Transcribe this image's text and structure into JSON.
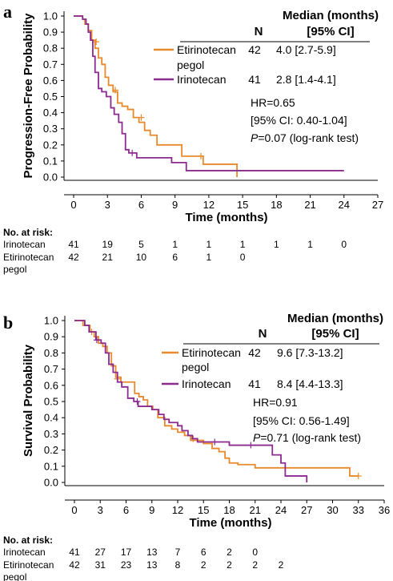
{
  "colors": {
    "etirinotecan": "#e8892b",
    "irinotecan": "#8b2a8f"
  },
  "chart_data": [
    {
      "panel": "a",
      "type": "line",
      "step": true,
      "xlabel": "Time (months)",
      "ylabel": "Progression-Free Probability",
      "xlim": [
        0,
        27
      ],
      "ylim": [
        0,
        1
      ],
      "xticks": [
        "0",
        "3",
        "6",
        "9",
        "12",
        "15",
        "18",
        "21",
        "24",
        "27"
      ],
      "yticks": [
        "0.0",
        "0.1",
        "0.2",
        "0.3",
        "0.4",
        "0.5",
        "0.6",
        "0.7",
        "0.8",
        "0.9",
        "1.0"
      ],
      "legend": {
        "header": "Median (months)",
        "n_header": "N",
        "ci_header": "[95% CI]",
        "rows": [
          {
            "name_line1": "Etirinotecan",
            "name_line2": "pegol",
            "n": "42",
            "median": "4.0 [2.7-5.9]"
          },
          {
            "name_line1": "Irinotecan",
            "name_line2": "",
            "n": "41",
            "median": "2.8 [1.4-4.1]"
          }
        ]
      },
      "stats": {
        "hr": "HR=0.65",
        "ci": "[95% CI: 0.40-1.04]",
        "p_label": "P",
        "p_rest": "=0.07 (log-rank test)"
      },
      "series": [
        {
          "name": "Etirinotecan pegol",
          "color": "#e8892b",
          "x": [
            0,
            0.8,
            1.0,
            1.3,
            1.6,
            1.9,
            2.2,
            2.5,
            2.8,
            3.1,
            3.5,
            3.9,
            4.3,
            4.8,
            5.3,
            5.8,
            6.3,
            6.8,
            7.4,
            8.1,
            9.6,
            10.5,
            11.5,
            12.3,
            14.3,
            14.5
          ],
          "y": [
            1.0,
            0.98,
            0.95,
            0.91,
            0.85,
            0.8,
            0.74,
            0.7,
            0.62,
            0.57,
            0.53,
            0.46,
            0.44,
            0.42,
            0.37,
            0.34,
            0.29,
            0.26,
            0.2,
            0.2,
            0.13,
            0.13,
            0.08,
            0.08,
            0.08,
            0.0
          ],
          "censored": [
            [
              2.0,
              0.84
            ],
            [
              3.7,
              0.54
            ],
            [
              6.0,
              0.37
            ],
            [
              11.3,
              0.13
            ]
          ]
        },
        {
          "name": "Irinotecan",
          "color": "#8b2a8f",
          "x": [
            0,
            0.8,
            1.1,
            1.3,
            1.5,
            1.7,
            1.9,
            2.2,
            2.5,
            2.9,
            3.3,
            3.6,
            4.0,
            4.3,
            4.6,
            4.9,
            5.2,
            5.6,
            6.3,
            8.7,
            10.0,
            24.0
          ],
          "y": [
            1.0,
            0.98,
            0.95,
            0.9,
            0.85,
            0.75,
            0.65,
            0.55,
            0.53,
            0.5,
            0.43,
            0.39,
            0.34,
            0.27,
            0.17,
            0.15,
            0.15,
            0.12,
            0.12,
            0.09,
            0.04,
            0.04
          ],
          "censored": [
            [
              5.2,
              0.15
            ]
          ]
        }
      ],
      "at_risk": {
        "title": "No. at risk:",
        "rows": [
          {
            "label_line1": "Irinotecan",
            "label_line2": "",
            "values": [
              "41",
              "19",
              "5",
              "1",
              "1",
              "1",
              "1",
              "1",
              "0"
            ]
          },
          {
            "label_line1": "Etirinotecan",
            "label_line2": "pegol",
            "values": [
              "42",
              "21",
              "10",
              "6",
              "1",
              "0"
            ]
          }
        ]
      }
    },
    {
      "panel": "b",
      "type": "line",
      "step": true,
      "xlabel": "Time (months)",
      "ylabel": "Survival Probability",
      "xlim": [
        0,
        36
      ],
      "ylim": [
        0,
        1
      ],
      "xticks": [
        "0",
        "3",
        "6",
        "9",
        "12",
        "15",
        "18",
        "21",
        "24",
        "27",
        "30",
        "33",
        "36"
      ],
      "yticks": [
        "0.0",
        "0.1",
        "0.2",
        "0.3",
        "0.4",
        "0.5",
        "0.6",
        "0.7",
        "0.8",
        "0.9",
        "1.0"
      ],
      "legend": {
        "header": "Median (months)",
        "n_header": "N",
        "ci_header": "[95% CI]",
        "rows": [
          {
            "name_line1": "Etirinotecan",
            "name_line2": "pegol",
            "n": "42",
            "median": "9.6 [7.3-13.2]"
          },
          {
            "name_line1": "Irinotecan",
            "name_line2": "",
            "n": "41",
            "median": "8.4 [4.4-13.3]"
          }
        ]
      },
      "stats": {
        "hr": "HR=0.91",
        "ci": "[95% CI: 0.56-1.49]",
        "p_label": "P",
        "p_rest": "=0.71 (log-rank test)"
      },
      "series": [
        {
          "name": "Etirinotecan pegol",
          "color": "#e8892b",
          "x": [
            0,
            1.0,
            1.8,
            2.3,
            2.8,
            3.3,
            3.8,
            4.3,
            4.8,
            5.4,
            6.0,
            7.0,
            7.5,
            8.0,
            8.5,
            9.1,
            9.7,
            10.5,
            11.3,
            12.0,
            12.8,
            13.5,
            14.0,
            15.0,
            16.0,
            16.8,
            17.5,
            18.0,
            19.0,
            21.0,
            23.0,
            26.0,
            32.0,
            33.0
          ],
          "y": [
            1.0,
            0.97,
            0.93,
            0.9,
            0.86,
            0.84,
            0.8,
            0.72,
            0.65,
            0.62,
            0.62,
            0.55,
            0.53,
            0.51,
            0.47,
            0.45,
            0.4,
            0.35,
            0.33,
            0.31,
            0.29,
            0.26,
            0.26,
            0.24,
            0.21,
            0.19,
            0.15,
            0.12,
            0.11,
            0.09,
            0.09,
            0.09,
            0.04,
            0.04
          ],
          "censored": [
            [
              2.0,
              0.93
            ],
            [
              5.0,
              0.64
            ],
            [
              13.8,
              0.27
            ],
            [
              33.0,
              0.04
            ]
          ]
        },
        {
          "name": "Irinotecan",
          "color": "#8b2a8f",
          "x": [
            0,
            1.2,
            1.7,
            2.5,
            3.1,
            3.6,
            4.0,
            4.5,
            5.0,
            5.5,
            6.2,
            6.9,
            7.4,
            8.3,
            9.0,
            9.8,
            10.4,
            11.0,
            12.0,
            12.5,
            13.2,
            13.7,
            14.3,
            16.0,
            18.0,
            22.0,
            23.0,
            24.0,
            24.5,
            27.0
          ],
          "y": [
            1.0,
            0.97,
            0.93,
            0.88,
            0.86,
            0.8,
            0.73,
            0.68,
            0.62,
            0.59,
            0.52,
            0.5,
            0.47,
            0.47,
            0.45,
            0.42,
            0.39,
            0.37,
            0.35,
            0.32,
            0.29,
            0.27,
            0.25,
            0.25,
            0.23,
            0.23,
            0.17,
            0.12,
            0.04,
            0.0
          ],
          "censored": [
            [
              2.6,
              0.88
            ],
            [
              7.3,
              0.5
            ],
            [
              16.3,
              0.25
            ],
            [
              20.5,
              0.23
            ]
          ]
        }
      ],
      "at_risk": {
        "title": "No. at risk:",
        "rows": [
          {
            "label_line1": "Irinotecan",
            "label_line2": "",
            "values": [
              "41",
              "27",
              "17",
              "13",
              "7",
              "6",
              "2",
              "0"
            ]
          },
          {
            "label_line1": "Etirinotecan",
            "label_line2": "pegol",
            "values": [
              "42",
              "31",
              "23",
              "13",
              "8",
              "2",
              "2",
              "2",
              "2"
            ]
          }
        ]
      }
    }
  ]
}
